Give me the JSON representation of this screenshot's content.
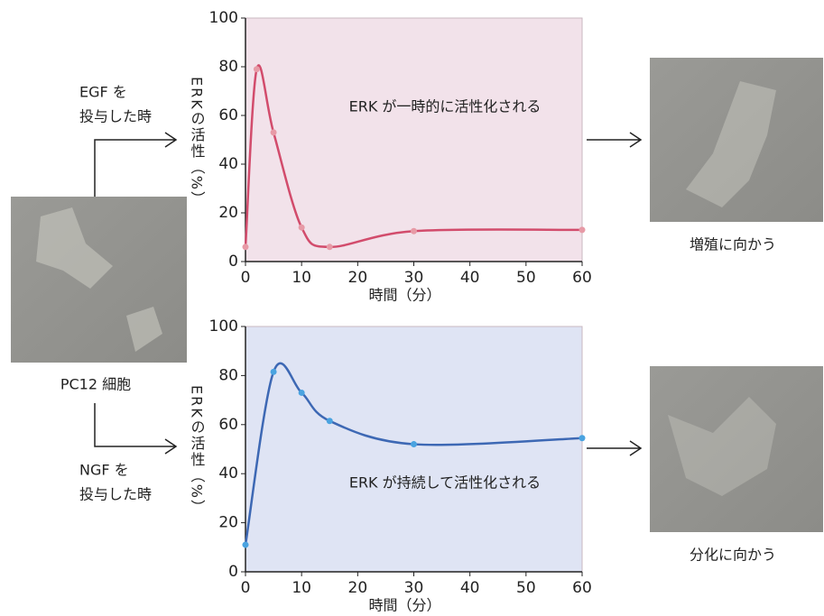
{
  "chart_data": [
    {
      "type": "line",
      "ylabel": "ERKの活性（%）",
      "xlabel": "時間（分）",
      "annotation": "ERK が一時的に活性化される",
      "background": "#f2e2ea",
      "x": [
        0,
        2,
        5,
        10,
        15,
        30,
        60
      ],
      "series": [
        {
          "color": "#d24c6c",
          "marker_color": "#e79aa6",
          "values": [
            6,
            79,
            53,
            14,
            6,
            12.5,
            13
          ]
        }
      ],
      "xlim": [
        0,
        60
      ],
      "ylim": [
        0,
        100
      ],
      "xticks": [
        0,
        10,
        20,
        30,
        40,
        50,
        60
      ],
      "yticks": [
        0,
        20,
        40,
        60,
        80,
        100
      ]
    },
    {
      "type": "line",
      "ylabel": "ERKの活性（%）",
      "xlabel": "時間（分）",
      "annotation": "ERK が持続して活性化される",
      "background": "#dfe4f4",
      "x": [
        0,
        5,
        10,
        15,
        30,
        60
      ],
      "series": [
        {
          "color": "#3d68b4",
          "marker_color": "#4aa3e0",
          "values": [
            11,
            81.5,
            73,
            61.5,
            52,
            54.5
          ]
        }
      ],
      "xlim": [
        0,
        60
      ],
      "ylim": [
        0,
        100
      ],
      "xticks": [
        0,
        10,
        20,
        30,
        40,
        50,
        60
      ],
      "yticks": [
        0,
        20,
        40,
        60,
        80,
        100
      ]
    }
  ],
  "labels": {
    "cell": "PC12 細胞",
    "egf": [
      "EGF を",
      "投与した時"
    ],
    "ngf": [
      "NGF を",
      "投与した時"
    ],
    "proliferation": "増殖に向かう",
    "differentiation": "分化に向かう"
  }
}
